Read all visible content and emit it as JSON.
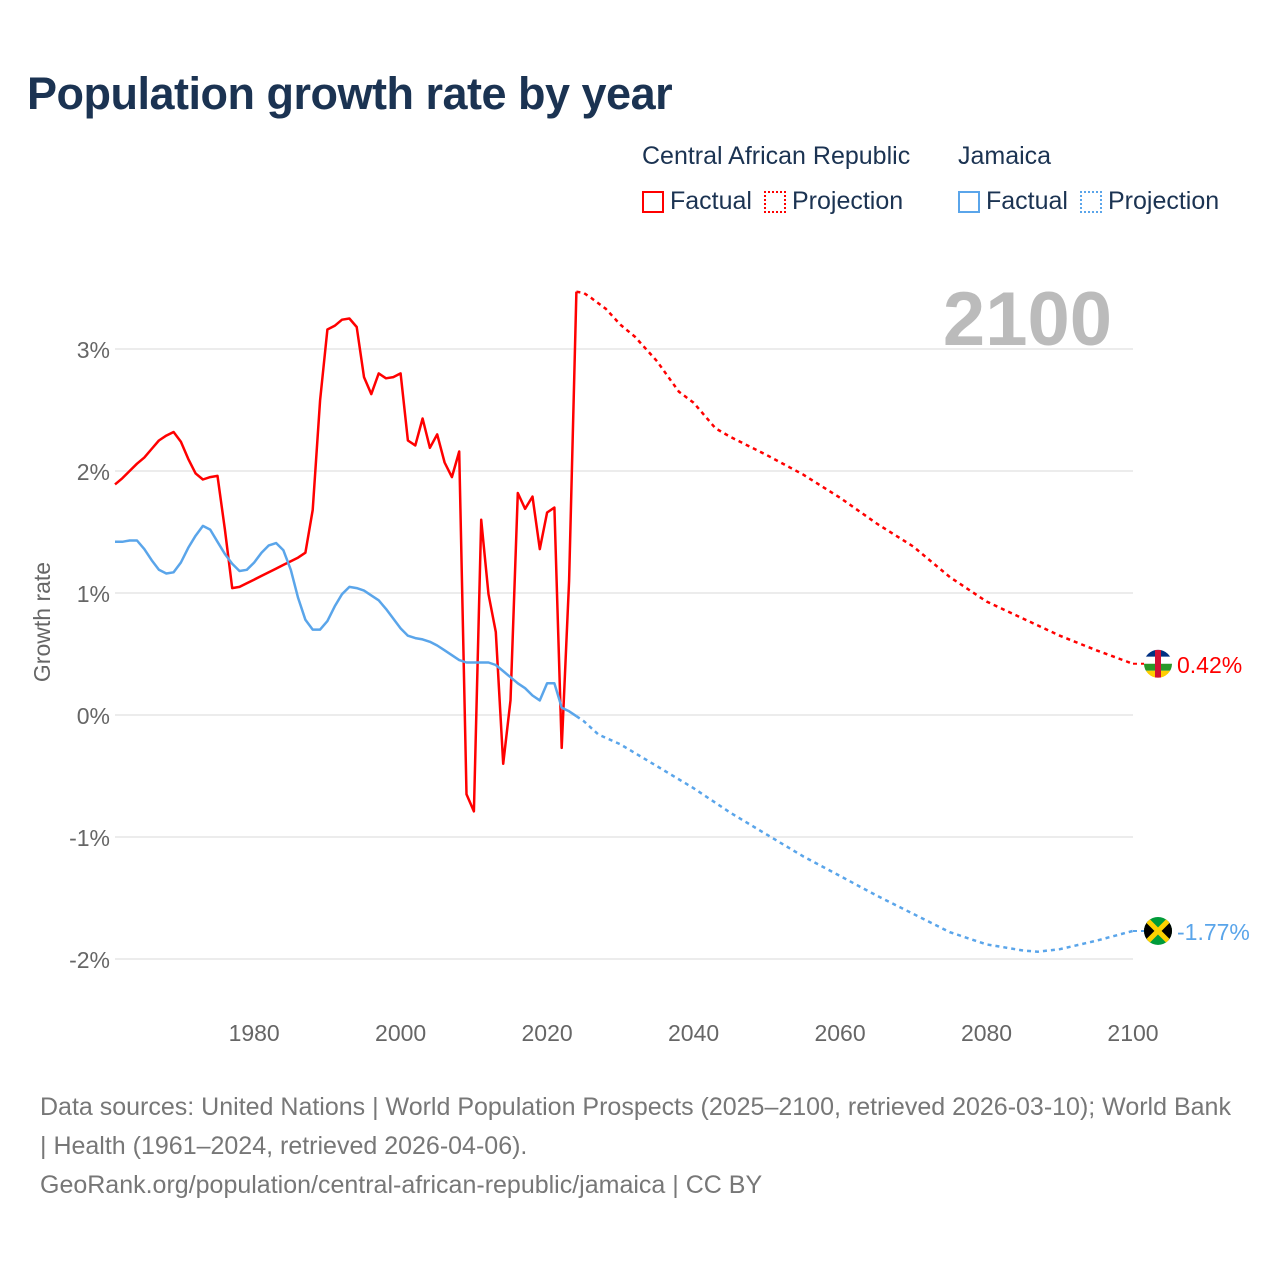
{
  "title": "Population growth rate by year",
  "legend": {
    "groups": [
      {
        "name": "Central African Republic",
        "factual": "Factual",
        "projection": "Projection",
        "color": "#ff0000"
      },
      {
        "name": "Jamaica",
        "factual": "Factual",
        "projection": "Projection",
        "color": "#5aa5ea"
      }
    ]
  },
  "current_year": "2100",
  "footer": {
    "sources": "Data sources: United Nations | World Population Prospects (2025–2100, retrieved 2026-03-10); World Bank | Health (1961–2024, retrieved 2026-04-06).",
    "link": "GeoRank.org/population/central-african-republic/jamaica | CC BY"
  },
  "chart_data": {
    "type": "line",
    "title": "Population growth rate by year",
    "xlabel": "",
    "ylabel": "Growth rate",
    "xlim": [
      1961,
      2100
    ],
    "ylim": [
      -2.35,
      3.7
    ],
    "x_ticks": [
      1980,
      2000,
      2020,
      2040,
      2060,
      2080,
      2100
    ],
    "y_ticks": [
      {
        "v": 3,
        "label": "3%"
      },
      {
        "v": 2,
        "label": "2%"
      },
      {
        "v": 1,
        "label": "1%"
      },
      {
        "v": 0,
        "label": "0%"
      },
      {
        "v": -1,
        "label": "-1%"
      },
      {
        "v": -2,
        "label": "-2%"
      }
    ],
    "grid": true,
    "legend_position": "top-right",
    "series": [
      {
        "name": "Central African Republic",
        "color": "#ff0000",
        "end_label": "0.42%",
        "factual": {
          "x": [
            1961,
            1962,
            1963,
            1964,
            1965,
            1966,
            1967,
            1968,
            1969,
            1970,
            1971,
            1972,
            1973,
            1974,
            1975,
            1976,
            1977,
            1978,
            1979,
            1980,
            1981,
            1982,
            1983,
            1984,
            1985,
            1986,
            1987,
            1988,
            1989,
            1990,
            1991,
            1992,
            1993,
            1994,
            1995,
            1996,
            1997,
            1998,
            1999,
            2000,
            2001,
            2002,
            2003,
            2004,
            2005,
            2006,
            2007,
            2008,
            2009,
            2010,
            2011,
            2012,
            2013,
            2014,
            2015,
            2016,
            2017,
            2018,
            2019,
            2020,
            2021,
            2022,
            2023,
            2024
          ],
          "y": [
            1.89,
            1.94,
            2.0,
            2.06,
            2.11,
            2.18,
            2.25,
            2.29,
            2.32,
            2.24,
            2.1,
            1.98,
            1.93,
            1.95,
            1.96,
            1.52,
            1.04,
            1.05,
            1.08,
            1.11,
            1.14,
            1.17,
            1.2,
            1.23,
            1.26,
            1.29,
            1.33,
            1.68,
            2.58,
            3.16,
            3.19,
            3.24,
            3.25,
            3.18,
            2.77,
            2.63,
            2.8,
            2.76,
            2.77,
            2.8,
            2.25,
            2.21,
            2.43,
            2.19,
            2.3,
            2.07,
            1.95,
            2.16,
            -0.65,
            -0.79,
            1.6,
            0.99,
            0.68,
            -0.4,
            0.12,
            1.82,
            1.69,
            1.79,
            1.36,
            1.66,
            1.7,
            -0.27,
            1.1,
            3.47
          ]
        },
        "projection": {
          "x": [
            2024,
            2025,
            2026,
            2028,
            2030,
            2032,
            2035,
            2038,
            2040,
            2043,
            2045,
            2050,
            2055,
            2060,
            2065,
            2070,
            2075,
            2080,
            2085,
            2090,
            2095,
            2100
          ],
          "y": [
            3.47,
            3.46,
            3.42,
            3.33,
            3.2,
            3.1,
            2.9,
            2.65,
            2.56,
            2.35,
            2.28,
            2.13,
            1.97,
            1.78,
            1.57,
            1.38,
            1.13,
            0.93,
            0.79,
            0.65,
            0.53,
            0.42
          ]
        }
      },
      {
        "name": "Jamaica",
        "color": "#5aa5ea",
        "end_label": "-1.77%",
        "factual": {
          "x": [
            1961,
            1962,
            1963,
            1964,
            1965,
            1966,
            1967,
            1968,
            1969,
            1970,
            1971,
            1972,
            1973,
            1974,
            1975,
            1976,
            1977,
            1978,
            1979,
            1980,
            1981,
            1982,
            1983,
            1984,
            1985,
            1986,
            1987,
            1988,
            1989,
            1990,
            1991,
            1992,
            1993,
            1994,
            1995,
            1996,
            1997,
            1998,
            1999,
            2000,
            2001,
            2002,
            2003,
            2004,
            2005,
            2006,
            2007,
            2008,
            2009,
            2010,
            2011,
            2012,
            2013,
            2014,
            2015,
            2016,
            2017,
            2018,
            2019,
            2020,
            2021,
            2022,
            2023,
            2024
          ],
          "y": [
            1.42,
            1.42,
            1.43,
            1.43,
            1.36,
            1.27,
            1.19,
            1.16,
            1.17,
            1.25,
            1.37,
            1.47,
            1.55,
            1.52,
            1.42,
            1.32,
            1.24,
            1.18,
            1.19,
            1.25,
            1.33,
            1.39,
            1.41,
            1.35,
            1.19,
            0.96,
            0.78,
            0.7,
            0.7,
            0.77,
            0.89,
            0.99,
            1.05,
            1.04,
            1.02,
            0.98,
            0.94,
            0.87,
            0.79,
            0.71,
            0.65,
            0.63,
            0.62,
            0.6,
            0.57,
            0.53,
            0.49,
            0.45,
            0.43,
            0.43,
            0.43,
            0.43,
            0.41,
            0.36,
            0.31,
            0.26,
            0.22,
            0.16,
            0.12,
            0.26,
            0.26,
            0.06,
            0.03,
            -0.01
          ]
        },
        "projection": {
          "x": [
            2024,
            2025,
            2027,
            2030,
            2035,
            2040,
            2045,
            2050,
            2055,
            2060,
            2065,
            2070,
            2075,
            2080,
            2085,
            2087,
            2090,
            2095,
            2100
          ],
          "y": [
            -0.01,
            -0.05,
            -0.16,
            -0.24,
            -0.42,
            -0.6,
            -0.8,
            -0.98,
            -1.16,
            -1.32,
            -1.48,
            -1.63,
            -1.78,
            -1.88,
            -1.93,
            -1.94,
            -1.92,
            -1.85,
            -1.77
          ]
        }
      }
    ]
  }
}
